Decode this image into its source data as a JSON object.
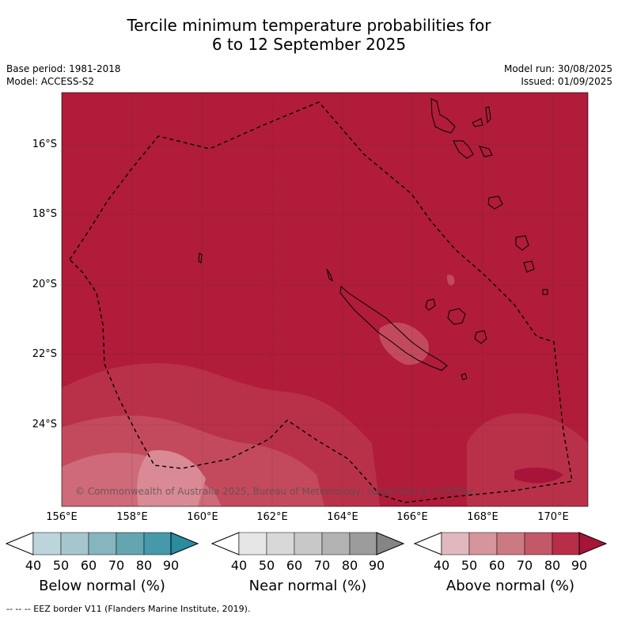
{
  "header": {
    "title_line1": "Tercile minimum temperature probabilities for",
    "title_line2": "6 to 12 September 2025",
    "base_period": "Base period: 1981-2018",
    "model": "Model: ACCESS-S2",
    "model_run": "Model run: 30/08/2025",
    "issued": "Issued: 01/09/2025"
  },
  "map": {
    "lat_labels": [
      "16°S",
      "18°S",
      "20°S",
      "22°S",
      "24°S"
    ],
    "lon_labels": [
      "156°E",
      "158°E",
      "160°E",
      "162°E",
      "164°E",
      "166°E",
      "168°E",
      "170°E"
    ],
    "copyright": "© Commonwealth of Australia 2025, Bureau of Meteorology, supported by COSPPac",
    "base_color": "#b01c3a"
  },
  "colorbars": [
    {
      "title": "Below normal (%)",
      "ticks": [
        "40",
        "50",
        "60",
        "70",
        "80",
        "90"
      ],
      "colors": [
        "#ffffff",
        "#bdd4db",
        "#a5c6cd",
        "#86b4bf",
        "#65a5b2",
        "#4599a8",
        "#2a8c9e"
      ]
    },
    {
      "title": "Near normal (%)",
      "ticks": [
        "40",
        "50",
        "60",
        "70",
        "80",
        "90"
      ],
      "colors": [
        "#ffffff",
        "#e6e6e6",
        "#d8d8d8",
        "#c8c8c8",
        "#b3b3b3",
        "#9c9c9c",
        "#858585"
      ]
    },
    {
      "title": "Above normal (%)",
      "ticks": [
        "40",
        "50",
        "60",
        "70",
        "80",
        "90"
      ],
      "colors": [
        "#ffffff",
        "#e0b8be",
        "#d6949c",
        "#cc7a81",
        "#c25868",
        "#b82d47",
        "#a8133a"
      ]
    }
  ],
  "footnote": "--  --  -- EEZ border V11 (Flanders Marine Institute, 2019)."
}
